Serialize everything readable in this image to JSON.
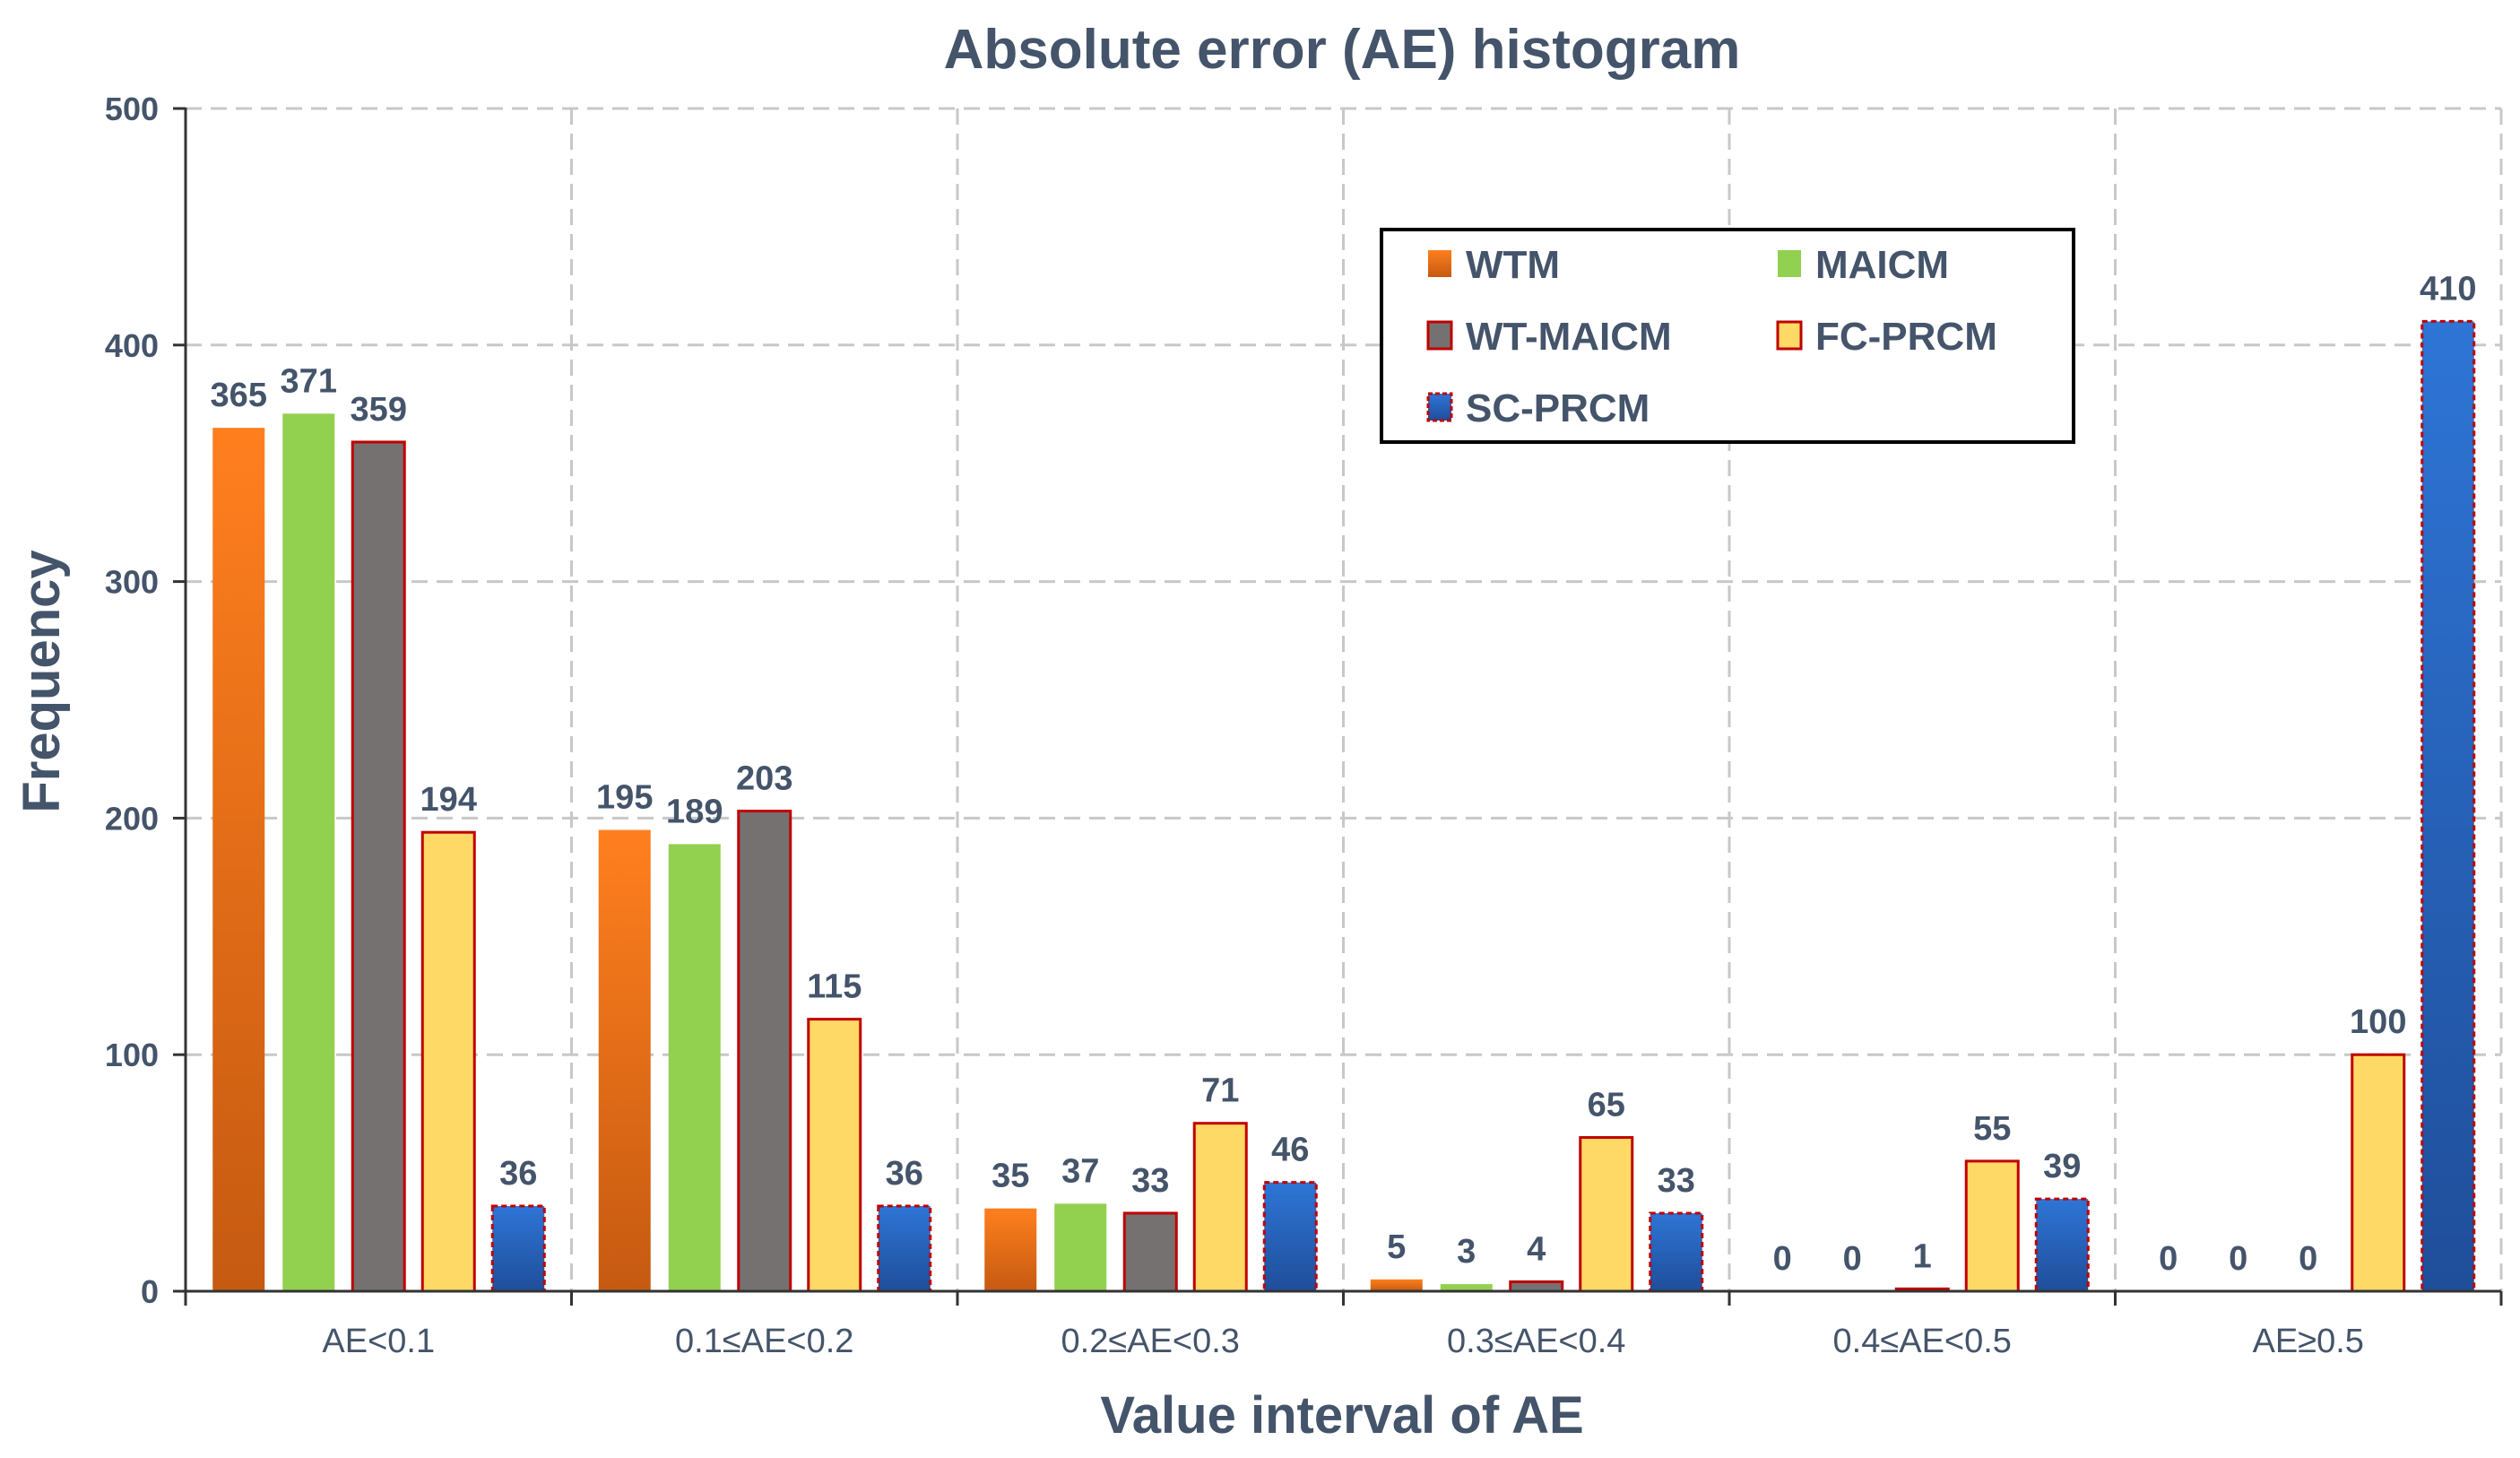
{
  "chart_data": {
    "type": "bar",
    "title": "Absolute error (AE) histogram",
    "xlabel": "Value interval of AE",
    "ylabel": "Frequency",
    "ylim": [
      0,
      500
    ],
    "yticks": [
      0,
      100,
      200,
      300,
      400,
      500
    ],
    "grid": true,
    "legend_position": "top-right",
    "categories": [
      "AE<0.1",
      "0.1≤AE<0.2",
      "0.2≤AE<0.3",
      "0.3≤AE<0.4",
      "0.4≤AE<0.5",
      "AE≥0.5"
    ],
    "series": [
      {
        "name": "WTM",
        "values": [
          365,
          195,
          35,
          5,
          0,
          0
        ],
        "color_top": "#FF7F1E",
        "color_bottom": "#C55A11",
        "border": "none"
      },
      {
        "name": "MAICM",
        "values": [
          371,
          189,
          37,
          3,
          0,
          0
        ],
        "color_top": "#92D050",
        "color_bottom": "#92D050",
        "border": "none"
      },
      {
        "name": "WT-MAICM",
        "values": [
          359,
          203,
          33,
          4,
          1,
          0
        ],
        "color_top": "#767171",
        "color_bottom": "#767171",
        "border": "#C00000"
      },
      {
        "name": "FC-PRCM",
        "values": [
          194,
          115,
          71,
          65,
          55,
          100
        ],
        "color_top": "#FFD966",
        "color_bottom": "#FFD966",
        "border": "#C00000"
      },
      {
        "name": "SC-PRCM",
        "values": [
          36,
          36,
          46,
          33,
          39,
          410
        ],
        "color_top": "#2E75D6",
        "color_bottom": "#1F4E9A",
        "border": "#C00000"
      }
    ]
  }
}
